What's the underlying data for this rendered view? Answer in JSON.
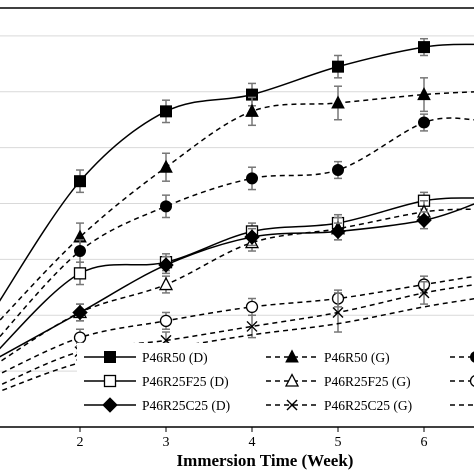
{
  "chart_data": {
    "type": "line",
    "xlabel": "Immersion Time (Week)",
    "ylabel": "",
    "title": "",
    "xlim": [
      1.0,
      6.6
    ],
    "ylim": [
      0,
      7.5
    ],
    "grid": true,
    "legend_position": "bottom",
    "x_ticks": [
      2,
      3,
      4,
      5,
      6
    ],
    "series": [
      {
        "name": "P46R50 (D)",
        "color": "#000000",
        "marker": "square-filled",
        "dash": "solid",
        "x": [
          1,
          2,
          3,
          4,
          5,
          6,
          6.6
        ],
        "y": [
          2.1,
          4.4,
          5.65,
          5.95,
          6.45,
          6.8,
          6.85
        ],
        "err": [
          0.2,
          0.2,
          0.2,
          0.2,
          0.2,
          0.15,
          0
        ]
      },
      {
        "name": "P46R50 (G)",
        "color": "#000000",
        "marker": "triangle-filled",
        "dash": "dashed",
        "x": [
          1,
          2,
          3,
          4,
          5,
          6,
          6.6
        ],
        "y": [
          1.8,
          3.4,
          4.65,
          5.65,
          5.8,
          5.95,
          6.0
        ],
        "err": [
          0.2,
          0.25,
          0.25,
          0.25,
          0.3,
          0.3,
          0
        ]
      },
      {
        "name": "",
        "color": "#000000",
        "marker": "circle-filled",
        "dash": "dashed",
        "x": [
          1,
          2,
          3,
          4,
          5,
          6,
          6.6
        ],
        "y": [
          1.5,
          3.15,
          3.95,
          4.45,
          4.6,
          5.45,
          5.5
        ],
        "err": [
          0.2,
          0.2,
          0.2,
          0.2,
          0.15,
          0.15,
          0
        ]
      },
      {
        "name": "P46R25F25 (D)",
        "color": "#000000",
        "marker": "square-open",
        "dash": "solid",
        "x": [
          1,
          2,
          3,
          4,
          5,
          6,
          6.6
        ],
        "y": [
          1.3,
          2.75,
          2.95,
          3.5,
          3.65,
          4.05,
          4.1
        ],
        "err": [
          0.15,
          0.2,
          0.15,
          0.15,
          0.15,
          0.15,
          0
        ]
      },
      {
        "name": "P46R25F25 (G)",
        "color": "#000000",
        "marker": "triangle-open",
        "dash": "dashed",
        "x": [
          1,
          2,
          3,
          4,
          5,
          6,
          6.6
        ],
        "y": [
          1.1,
          2.05,
          2.55,
          3.3,
          3.55,
          3.85,
          3.9
        ],
        "err": [
          0.15,
          0.15,
          0.15,
          0.15,
          0.2,
          0.2,
          0
        ]
      },
      {
        "name": "",
        "color": "#000000",
        "marker": "circle-open",
        "dash": "dashed",
        "x": [
          1,
          2,
          3,
          4,
          5,
          6,
          6.6
        ],
        "y": [
          0.9,
          1.6,
          1.9,
          2.15,
          2.3,
          2.55,
          2.7
        ],
        "err": [
          0.15,
          0.15,
          0.15,
          0.15,
          0.15,
          0.15,
          0
        ]
      },
      {
        "name": "P46R25C25 (D)",
        "color": "#000000",
        "marker": "diamond-filled",
        "dash": "solid",
        "x": [
          1,
          2,
          3,
          4,
          5,
          6,
          6.6
        ],
        "y": [
          1.2,
          2.05,
          2.9,
          3.4,
          3.5,
          3.7,
          4.0
        ],
        "err": [
          0.15,
          0.15,
          0.15,
          0.15,
          0.15,
          0.15,
          0
        ]
      },
      {
        "name": "P46R25C25 (G)",
        "color": "#000000",
        "marker": "cross",
        "dash": "dashed",
        "x": [
          1,
          2,
          3,
          4,
          5,
          6,
          6.6
        ],
        "y": [
          0.7,
          1.35,
          1.55,
          1.8,
          2.05,
          2.4,
          2.55
        ],
        "err": [
          0.15,
          0.15,
          0.15,
          0.2,
          0.35,
          0.2,
          0
        ]
      },
      {
        "name": "",
        "color": "#000000",
        "marker": "none",
        "dash": "dashed",
        "x": [
          1,
          2,
          3,
          4,
          5,
          6,
          6.6
        ],
        "y": [
          0.6,
          1.15,
          1.4,
          1.65,
          1.85,
          2.15,
          2.3
        ],
        "err": [
          0,
          0,
          0,
          0,
          0,
          0,
          0
        ]
      }
    ],
    "legend": [
      {
        "name": "P46R50 (D)",
        "marker": "square-filled",
        "dash": "solid"
      },
      {
        "name": "P46R50 (G)",
        "marker": "triangle-filled",
        "dash": "dashed"
      },
      {
        "name": "",
        "marker": "circle-filled",
        "dash": "dashed"
      },
      {
        "name": "P46R25F25 (D)",
        "marker": "square-open",
        "dash": "solid"
      },
      {
        "name": "P46R25F25 (G)",
        "marker": "triangle-open",
        "dash": "dashed"
      },
      {
        "name": "",
        "marker": "circle-open",
        "dash": "dashed"
      },
      {
        "name": "P46R25C25 (D)",
        "marker": "diamond-filled",
        "dash": "solid"
      },
      {
        "name": "P46R25C25 (G)",
        "marker": "cross",
        "dash": "dashed"
      },
      {
        "name": "",
        "marker": "none",
        "dash": "dashed"
      }
    ]
  }
}
